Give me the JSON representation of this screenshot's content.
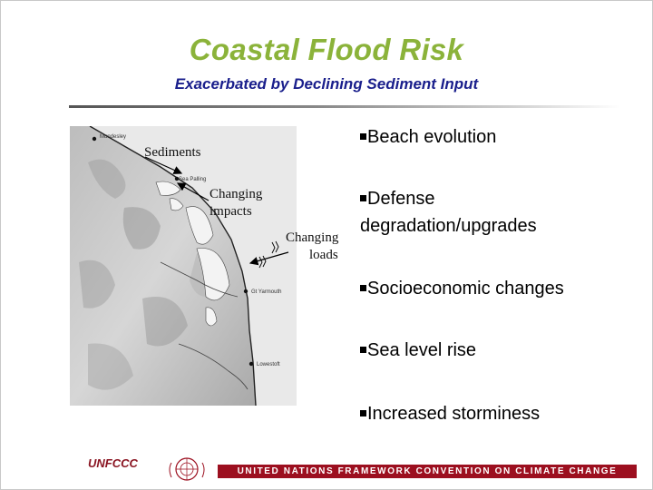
{
  "slide": {
    "title": "Coastal Flood Risk",
    "subtitle": "Exacerbated by Declining Sediment Input"
  },
  "map": {
    "towns": [
      "Mundesley",
      "Sea Palling",
      "Gt Yarmouth",
      "Lowestoft"
    ],
    "annotations": {
      "sediments": "Sediments",
      "impacts_1": "Changing",
      "impacts_2": "impacts",
      "loads_1": "Changing",
      "loads_2": "loads"
    }
  },
  "bullets": [
    "Beach evolution",
    "Defense",
    "degradation/upgrades",
    "Socioeconomic changes",
    "Sea level rise",
    "Increased storminess"
  ],
  "footer": {
    "unfccc_logo_text": "UNFCCC",
    "banner": "UNITED NATIONS FRAMEWORK CONVENTION ON CLIMATE CHANGE"
  },
  "colors": {
    "title": "#8bb33a",
    "subtitle": "#1a1f8c",
    "banner": "#9c0f1f"
  }
}
